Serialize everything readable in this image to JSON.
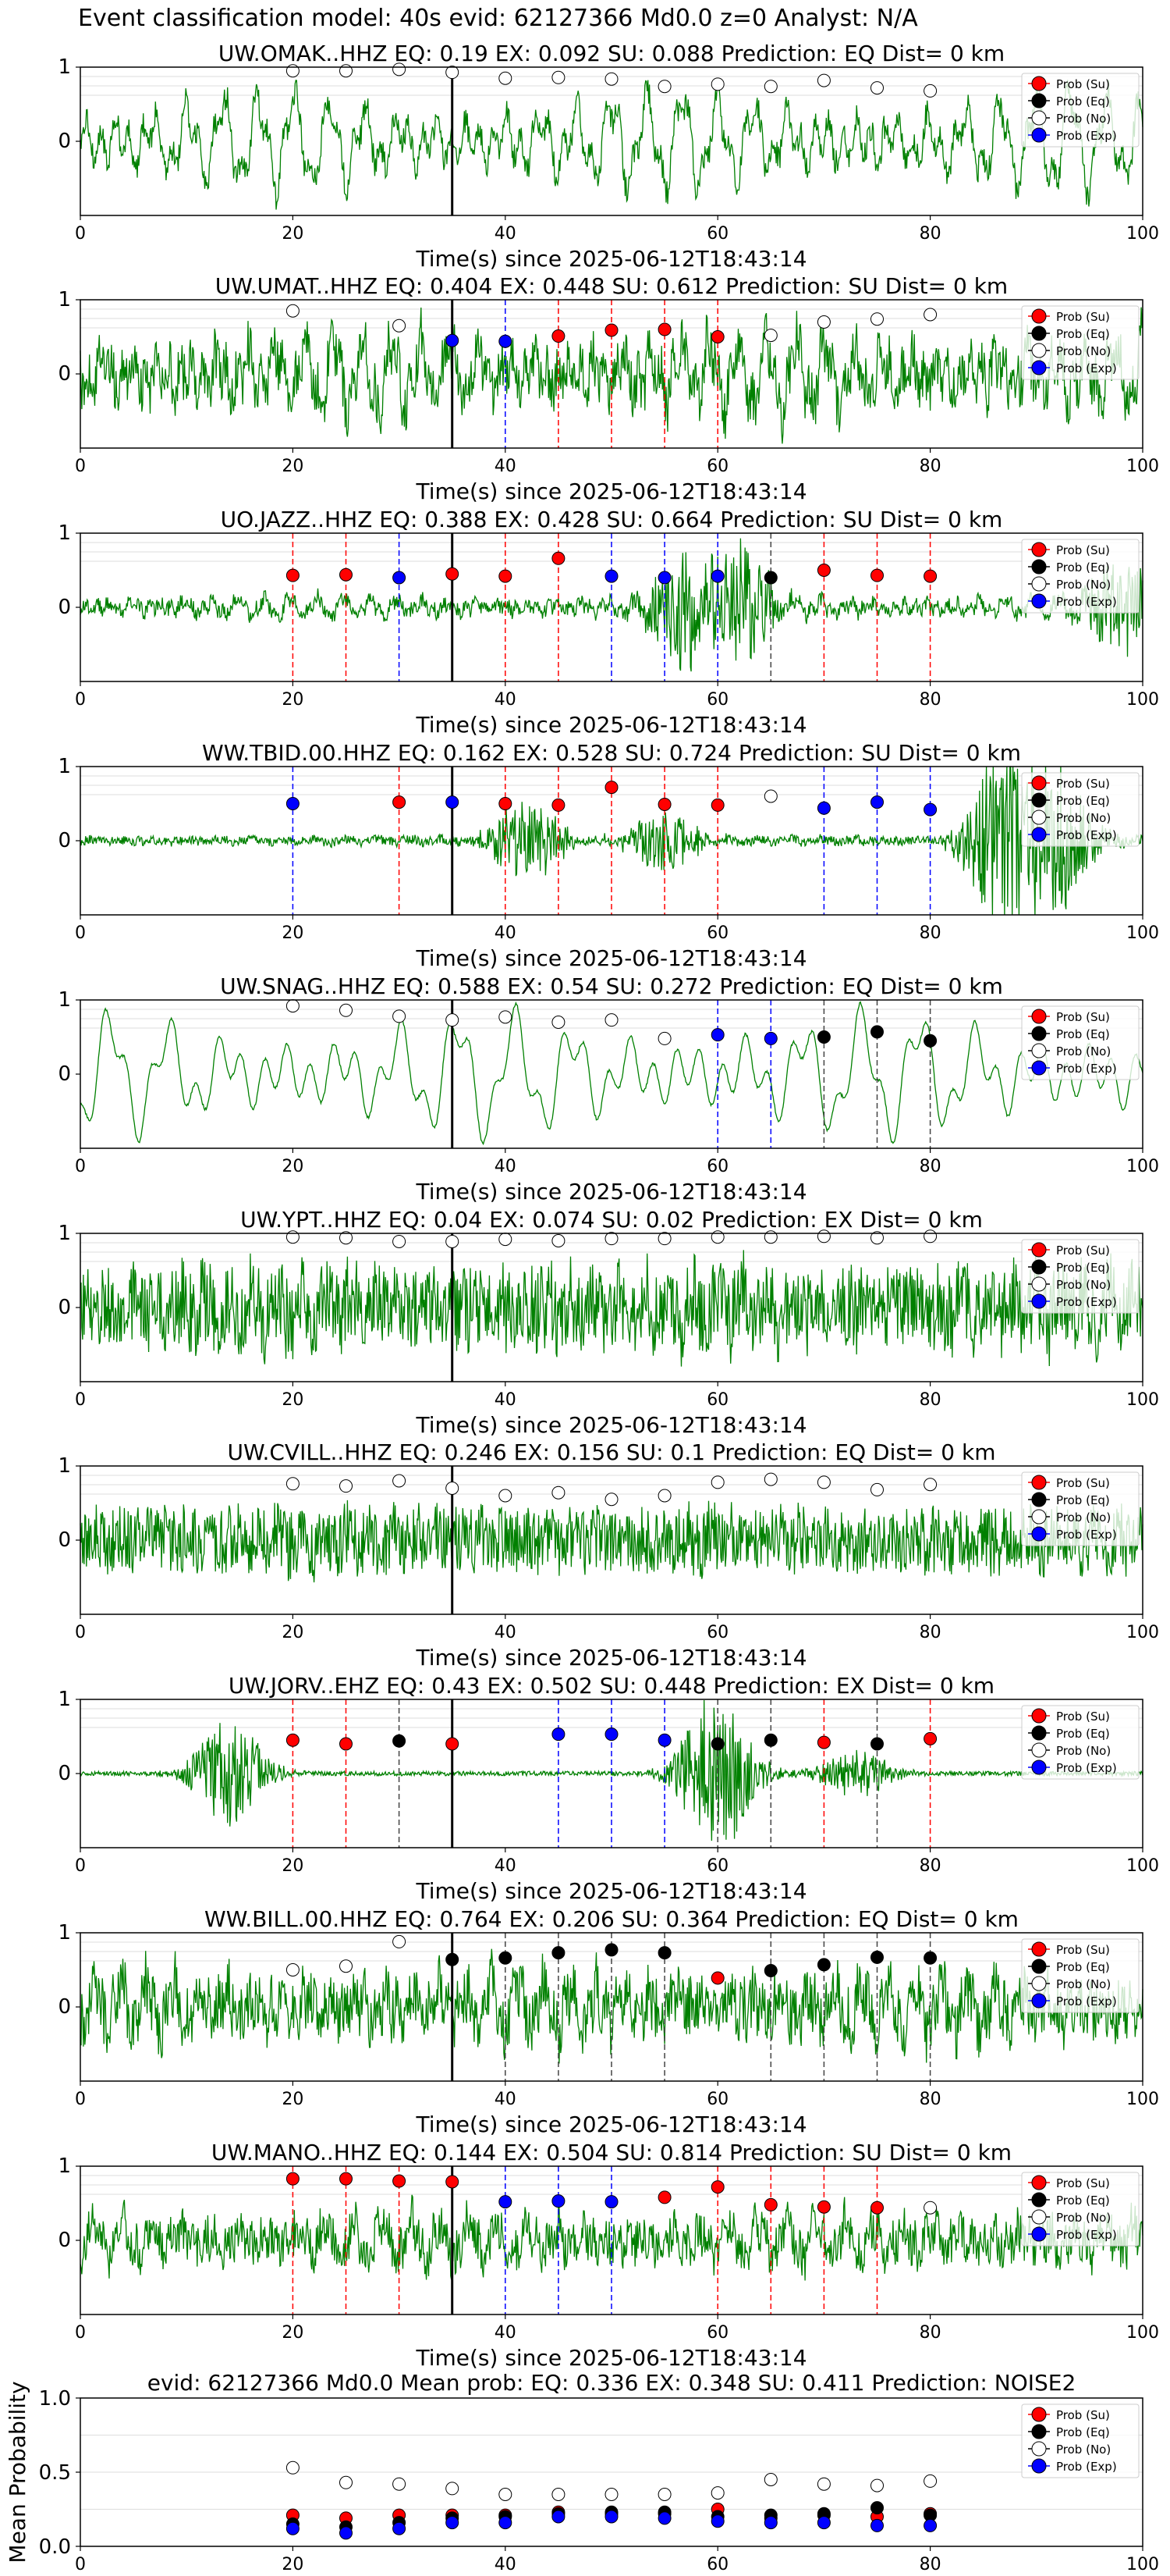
{
  "figure": {
    "suptitle": "Event classification model: 40s evid: 62127366 Md0.0 z=0 Analyst: N/A"
  },
  "legend": {
    "entries": [
      {
        "label": "Prob (Su)",
        "color": "#ff0000"
      },
      {
        "label": "Prob (Eq)",
        "color": "#000000"
      },
      {
        "label": "Prob (No)",
        "color": "#ffffff"
      },
      {
        "label": "Prob (Exp)",
        "color": "#0000ff"
      }
    ],
    "placement": "top-right"
  },
  "colors": {
    "waveform": "#008000",
    "su": "#ff0000",
    "eq": "#000000",
    "no": "#ffffff",
    "exp": "#0000ff",
    "pick_line": "#000000",
    "grid": "#dddddd"
  },
  "chart_data": [
    {
      "type": "line",
      "station": "OMAK",
      "title": "UW.OMAK..HHZ   EQ: 0.19  EX: 0.092  SU: 0.088   Prediction: EQ    Dist= 0 km",
      "xlabel": "Time(s) since 2025-06-12T18:43:14",
      "xlim": [
        0,
        100
      ],
      "ylim": [
        -1,
        1
      ],
      "xticks": [
        0,
        20,
        40,
        60,
        80,
        100
      ],
      "yticks": [
        0,
        1
      ],
      "grid": true,
      "legend": "top-right",
      "pick_time": 35,
      "x": [
        20,
        25,
        30,
        35,
        40,
        45,
        50,
        55,
        60,
        65,
        70,
        75,
        80
      ],
      "markers": [
        "no",
        "no",
        "no",
        "no",
        "no",
        "no",
        "no",
        "no",
        "no",
        "no",
        "no",
        "no",
        "no"
      ],
      "y": [
        0.95,
        0.95,
        0.97,
        0.93,
        0.85,
        0.86,
        0.84,
        0.74,
        0.77,
        0.74,
        0.82,
        0.72,
        0.68
      ],
      "vlines": []
    },
    {
      "type": "line",
      "station": "UMAT",
      "title": "UW.UMAT..HHZ   EQ: 0.404  EX: 0.448  SU: 0.612   Prediction: SU    Dist= 0 km",
      "xlabel": "Time(s) since 2025-06-12T18:43:14",
      "xlim": [
        0,
        100
      ],
      "ylim": [
        -1,
        1
      ],
      "xticks": [
        0,
        20,
        40,
        60,
        80,
        100
      ],
      "yticks": [
        0,
        1
      ],
      "grid": true,
      "legend": "top-right",
      "pick_time": 35,
      "x": [
        20,
        30,
        35,
        40,
        45,
        50,
        55,
        60,
        65,
        70,
        75,
        80
      ],
      "markers": [
        "no",
        "no",
        "exp",
        "exp",
        "su",
        "su",
        "su",
        "su",
        "no",
        "no",
        "no",
        "no"
      ],
      "y": [
        0.85,
        0.65,
        0.45,
        0.44,
        0.51,
        0.59,
        0.6,
        0.5,
        0.52,
        0.7,
        0.74,
        0.8
      ],
      "vlines": [
        {
          "x": 35,
          "c": "exp"
        },
        {
          "x": 40,
          "c": "exp"
        },
        {
          "x": 45,
          "c": "su"
        },
        {
          "x": 50,
          "c": "su"
        },
        {
          "x": 55,
          "c": "su"
        },
        {
          "x": 60,
          "c": "su"
        }
      ]
    },
    {
      "type": "line",
      "station": "JAZZ",
      "title": "UO.JAZZ..HHZ   EQ: 0.388  EX: 0.428  SU: 0.664   Prediction: SU    Dist= 0 km",
      "xlabel": "Time(s) since 2025-06-12T18:43:14",
      "xlim": [
        0,
        100
      ],
      "ylim": [
        -1,
        1
      ],
      "xticks": [
        0,
        20,
        40,
        60,
        80,
        100
      ],
      "yticks": [
        0,
        1
      ],
      "grid": true,
      "legend": "top-right",
      "pick_time": 35,
      "x": [
        20,
        25,
        30,
        35,
        40,
        45,
        50,
        55,
        60,
        65,
        70,
        75,
        80
      ],
      "markers": [
        "su",
        "su",
        "exp",
        "su",
        "su",
        "su",
        "exp",
        "exp",
        "exp",
        "eq",
        "su",
        "su",
        "su"
      ],
      "y": [
        0.43,
        0.44,
        0.4,
        0.45,
        0.42,
        0.66,
        0.42,
        0.4,
        0.42,
        0.4,
        0.5,
        0.43,
        0.42
      ],
      "vlines": [
        {
          "x": 20,
          "c": "su"
        },
        {
          "x": 25,
          "c": "su"
        },
        {
          "x": 30,
          "c": "exp"
        },
        {
          "x": 40,
          "c": "su"
        },
        {
          "x": 45,
          "c": "su"
        },
        {
          "x": 50,
          "c": "exp"
        },
        {
          "x": 55,
          "c": "exp"
        },
        {
          "x": 60,
          "c": "exp"
        },
        {
          "x": 65,
          "c": "eq"
        },
        {
          "x": 70,
          "c": "su"
        },
        {
          "x": 75,
          "c": "su"
        },
        {
          "x": 80,
          "c": "su"
        }
      ]
    },
    {
      "type": "line",
      "station": "TBID",
      "title": "WW.TBID.00.HHZ   EQ: 0.162  EX: 0.528  SU: 0.724   Prediction: SU    Dist= 0 km",
      "xlabel": "Time(s) since 2025-06-12T18:43:14",
      "xlim": [
        0,
        100
      ],
      "ylim": [
        -1,
        1
      ],
      "xticks": [
        0,
        20,
        40,
        60,
        80,
        100
      ],
      "yticks": [
        0,
        1
      ],
      "grid": true,
      "legend": "top-right",
      "pick_time": 35,
      "x": [
        20,
        30,
        35,
        40,
        45,
        50,
        55,
        60,
        65,
        70,
        75,
        80
      ],
      "markers": [
        "exp",
        "su",
        "exp",
        "su",
        "su",
        "su",
        "su",
        "su",
        "no",
        "exp",
        "exp",
        "exp"
      ],
      "y": [
        0.5,
        0.52,
        0.52,
        0.5,
        0.48,
        0.72,
        0.49,
        0.48,
        0.6,
        0.44,
        0.52,
        0.42
      ],
      "vlines": [
        {
          "x": 20,
          "c": "exp"
        },
        {
          "x": 30,
          "c": "su"
        },
        {
          "x": 40,
          "c": "su"
        },
        {
          "x": 45,
          "c": "su"
        },
        {
          "x": 50,
          "c": "su"
        },
        {
          "x": 55,
          "c": "su"
        },
        {
          "x": 60,
          "c": "su"
        },
        {
          "x": 70,
          "c": "exp"
        },
        {
          "x": 75,
          "c": "exp"
        },
        {
          "x": 80,
          "c": "exp"
        }
      ]
    },
    {
      "type": "line",
      "station": "SNAG",
      "title": "UW.SNAG..HHZ   EQ: 0.588  EX: 0.54  SU: 0.272   Prediction: EQ    Dist= 0 km",
      "xlabel": "Time(s) since 2025-06-12T18:43:14",
      "xlim": [
        0,
        100
      ],
      "ylim": [
        -1,
        1
      ],
      "xticks": [
        0,
        20,
        40,
        60,
        80,
        100
      ],
      "yticks": [
        0,
        1
      ],
      "grid": true,
      "legend": "top-right",
      "pick_time": 35,
      "x": [
        20,
        25,
        30,
        35,
        40,
        45,
        50,
        55,
        60,
        65,
        70,
        75,
        80
      ],
      "markers": [
        "no",
        "no",
        "no",
        "no",
        "no",
        "no",
        "no",
        "no",
        "exp",
        "exp",
        "eq",
        "eq",
        "eq"
      ],
      "y": [
        0.92,
        0.86,
        0.78,
        0.73,
        0.77,
        0.7,
        0.73,
        0.48,
        0.53,
        0.48,
        0.5,
        0.57,
        0.45
      ],
      "vlines": [
        {
          "x": 60,
          "c": "exp"
        },
        {
          "x": 65,
          "c": "exp"
        },
        {
          "x": 70,
          "c": "eq"
        },
        {
          "x": 75,
          "c": "eq"
        },
        {
          "x": 80,
          "c": "eq"
        }
      ]
    },
    {
      "type": "line",
      "station": "YPT",
      "title": "UW.YPT..HHZ   EQ: 0.04  EX: 0.074  SU: 0.02   Prediction: EX    Dist= 0 km",
      "xlabel": "Time(s) since 2025-06-12T18:43:14",
      "xlim": [
        0,
        100
      ],
      "ylim": [
        -1,
        1
      ],
      "xticks": [
        0,
        20,
        40,
        60,
        80,
        100
      ],
      "yticks": [
        0,
        1
      ],
      "grid": true,
      "legend": "top-right",
      "pick_time": 35,
      "x": [
        20,
        25,
        30,
        35,
        40,
        45,
        50,
        55,
        60,
        65,
        70,
        75,
        80
      ],
      "markers": [
        "no",
        "no",
        "no",
        "no",
        "no",
        "no",
        "no",
        "no",
        "no",
        "no",
        "no",
        "no",
        "no"
      ],
      "y": [
        0.95,
        0.94,
        0.89,
        0.89,
        0.92,
        0.9,
        0.93,
        0.93,
        0.95,
        0.95,
        0.96,
        0.94,
        0.96
      ],
      "vlines": []
    },
    {
      "type": "line",
      "station": "CVILL",
      "title": "UW.CVILL..HHZ   EQ: 0.246  EX: 0.156  SU: 0.1   Prediction: EQ    Dist= 0 km",
      "xlabel": "Time(s) since 2025-06-12T18:43:14",
      "xlim": [
        0,
        100
      ],
      "ylim": [
        -1,
        1
      ],
      "xticks": [
        0,
        20,
        40,
        60,
        80,
        100
      ],
      "yticks": [
        0,
        1
      ],
      "grid": true,
      "legend": "top-right",
      "pick_time": 35,
      "x": [
        20,
        25,
        30,
        35,
        40,
        45,
        50,
        55,
        60,
        65,
        70,
        75,
        80
      ],
      "markers": [
        "no",
        "no",
        "no",
        "no",
        "no",
        "no",
        "no",
        "no",
        "no",
        "no",
        "no",
        "no",
        "no"
      ],
      "y": [
        0.76,
        0.73,
        0.8,
        0.7,
        0.6,
        0.64,
        0.55,
        0.6,
        0.78,
        0.82,
        0.78,
        0.68,
        0.75
      ],
      "vlines": []
    },
    {
      "type": "line",
      "station": "JORV",
      "title": "UW.JORV..EHZ   EQ: 0.43  EX: 0.502  SU: 0.448   Prediction: EX    Dist= 0 km",
      "xlabel": "Time(s) since 2025-06-12T18:43:14",
      "xlim": [
        0,
        100
      ],
      "ylim": [
        -1,
        1
      ],
      "xticks": [
        0,
        20,
        40,
        60,
        80,
        100
      ],
      "yticks": [
        0,
        1
      ],
      "grid": true,
      "legend": "top-right",
      "pick_time": 35,
      "x": [
        20,
        25,
        30,
        35,
        45,
        50,
        55,
        60,
        65,
        70,
        75,
        80
      ],
      "markers": [
        "su",
        "su",
        "eq",
        "su",
        "exp",
        "exp",
        "exp",
        "eq",
        "eq",
        "su",
        "eq",
        "su"
      ],
      "y": [
        0.45,
        0.4,
        0.44,
        0.4,
        0.53,
        0.53,
        0.45,
        0.4,
        0.45,
        0.42,
        0.4,
        0.47
      ],
      "vlines": [
        {
          "x": 20,
          "c": "su"
        },
        {
          "x": 25,
          "c": "su"
        },
        {
          "x": 30,
          "c": "eq"
        },
        {
          "x": 45,
          "c": "exp"
        },
        {
          "x": 50,
          "c": "exp"
        },
        {
          "x": 55,
          "c": "exp"
        },
        {
          "x": 60,
          "c": "eq"
        },
        {
          "x": 65,
          "c": "eq"
        },
        {
          "x": 70,
          "c": "su"
        },
        {
          "x": 75,
          "c": "eq"
        },
        {
          "x": 80,
          "c": "su"
        }
      ]
    },
    {
      "type": "line",
      "station": "BILL",
      "title": "WW.BILL.00.HHZ   EQ: 0.764  EX: 0.206  SU: 0.364   Prediction: EQ    Dist= 0 km",
      "xlabel": "Time(s) since 2025-06-12T18:43:14",
      "xlim": [
        0,
        100
      ],
      "ylim": [
        -1,
        1
      ],
      "xticks": [
        0,
        20,
        40,
        60,
        80,
        100
      ],
      "yticks": [
        0,
        1
      ],
      "grid": true,
      "legend": "top-right",
      "pick_time": 35,
      "x": [
        20,
        25,
        30,
        35,
        40,
        45,
        50,
        55,
        60,
        65,
        70,
        75,
        80
      ],
      "markers": [
        "no",
        "no",
        "no",
        "eq",
        "eq",
        "eq",
        "eq",
        "eq",
        "su",
        "eq",
        "eq",
        "eq",
        "eq"
      ],
      "y": [
        0.5,
        0.55,
        0.88,
        0.64,
        0.66,
        0.73,
        0.77,
        0.73,
        0.39,
        0.49,
        0.57,
        0.67,
        0.66
      ],
      "vlines": [
        {
          "x": 40,
          "c": "eq"
        },
        {
          "x": 45,
          "c": "eq"
        },
        {
          "x": 50,
          "c": "eq"
        },
        {
          "x": 55,
          "c": "eq"
        },
        {
          "x": 65,
          "c": "eq"
        },
        {
          "x": 70,
          "c": "eq"
        },
        {
          "x": 75,
          "c": "eq"
        },
        {
          "x": 80,
          "c": "eq"
        }
      ]
    },
    {
      "type": "line",
      "station": "MANO",
      "title": "UW.MANO..HHZ   EQ: 0.144  EX: 0.504  SU: 0.814   Prediction: SU    Dist= 0 km",
      "xlabel": "Time(s) since 2025-06-12T18:43:14",
      "xlim": [
        0,
        100
      ],
      "ylim": [
        -1,
        1
      ],
      "xticks": [
        0,
        20,
        40,
        60,
        80,
        100
      ],
      "yticks": [
        0,
        1
      ],
      "grid": true,
      "legend": "top-right",
      "pick_time": 35,
      "x": [
        20,
        25,
        30,
        35,
        40,
        45,
        50,
        55,
        60,
        65,
        70,
        75,
        80
      ],
      "markers": [
        "su",
        "su",
        "su",
        "su",
        "exp",
        "exp",
        "exp",
        "su",
        "su",
        "su",
        "su",
        "su",
        "no"
      ],
      "y": [
        0.83,
        0.83,
        0.8,
        0.79,
        0.52,
        0.53,
        0.52,
        0.58,
        0.72,
        0.48,
        0.45,
        0.44,
        0.44
      ],
      "vlines": [
        {
          "x": 20,
          "c": "su"
        },
        {
          "x": 25,
          "c": "su"
        },
        {
          "x": 30,
          "c": "su"
        },
        {
          "x": 40,
          "c": "exp"
        },
        {
          "x": 45,
          "c": "exp"
        },
        {
          "x": 50,
          "c": "exp"
        },
        {
          "x": 60,
          "c": "su"
        },
        {
          "x": 65,
          "c": "su"
        },
        {
          "x": 70,
          "c": "su"
        },
        {
          "x": 75,
          "c": "su"
        }
      ]
    },
    {
      "type": "scatter",
      "title": "evid: 62127366  Md0.0   Mean prob:   EQ: 0.336  EX: 0.348  SU: 0.411   Prediction: NOISE2",
      "xlabel": "",
      "ylabel": "Mean Probability",
      "xlim": [
        0,
        100
      ],
      "ylim": [
        0,
        1
      ],
      "xticks": [
        0,
        20,
        40,
        60,
        80,
        100
      ],
      "yticks": [
        0.0,
        0.5,
        1.0
      ],
      "grid": true,
      "legend": "top-right",
      "x": [
        20,
        25,
        30,
        35,
        40,
        45,
        50,
        55,
        60,
        65,
        70,
        75,
        80
      ],
      "series": [
        {
          "name": "Prob (Su)",
          "key": "su",
          "values": [
            0.21,
            0.19,
            0.21,
            0.21,
            0.21,
            0.23,
            0.22,
            0.22,
            0.25,
            0.19,
            0.21,
            0.2,
            0.22
          ]
        },
        {
          "name": "Prob (Eq)",
          "key": "eq",
          "values": [
            0.15,
            0.13,
            0.16,
            0.19,
            0.2,
            0.22,
            0.23,
            0.23,
            0.2,
            0.21,
            0.22,
            0.26,
            0.21
          ]
        },
        {
          "name": "Prob (No)",
          "key": "no",
          "values": [
            0.53,
            0.43,
            0.42,
            0.39,
            0.35,
            0.35,
            0.35,
            0.35,
            0.36,
            0.45,
            0.42,
            0.41,
            0.44
          ]
        },
        {
          "name": "Prob (Exp)",
          "key": "exp",
          "values": [
            0.12,
            0.09,
            0.12,
            0.16,
            0.16,
            0.2,
            0.2,
            0.19,
            0.17,
            0.16,
            0.16,
            0.14,
            0.14
          ]
        }
      ]
    }
  ]
}
